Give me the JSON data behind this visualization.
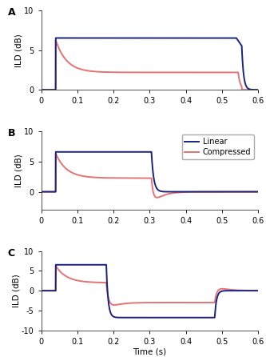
{
  "panel_labels": [
    "A",
    "B",
    "C"
  ],
  "linear_color": "#1a237e",
  "compressed_color": "#e57373",
  "linewidth": 1.4,
  "xlim": [
    0,
    0.6
  ],
  "xticks": [
    0,
    0.1,
    0.2,
    0.3,
    0.4,
    0.5,
    0.6
  ],
  "xtick_labels": [
    "0",
    "0.1",
    "0.2",
    "0.3",
    "0.4",
    "0.5",
    "0.6"
  ],
  "xlabel": "Time (s)",
  "ylabel": "ILD (dB)",
  "legend_labels": [
    "Linear",
    "Compressed"
  ],
  "panel_A": {
    "ylim": [
      0,
      10
    ],
    "yticks": [
      0,
      5,
      10
    ],
    "ytick_labels": [
      "0",
      "5",
      "10"
    ]
  },
  "panel_B": {
    "ylim": [
      -3,
      10
    ],
    "yticks": [
      0,
      5,
      10
    ],
    "ytick_labels": [
      "0",
      "5",
      "10"
    ]
  },
  "panel_C": {
    "ylim": [
      -10,
      10
    ],
    "yticks": [
      -10,
      -5,
      0,
      5,
      10
    ],
    "ytick_labels": [
      "-10",
      "-5",
      "0",
      "5",
      "10"
    ]
  },
  "background_color": "#ffffff"
}
